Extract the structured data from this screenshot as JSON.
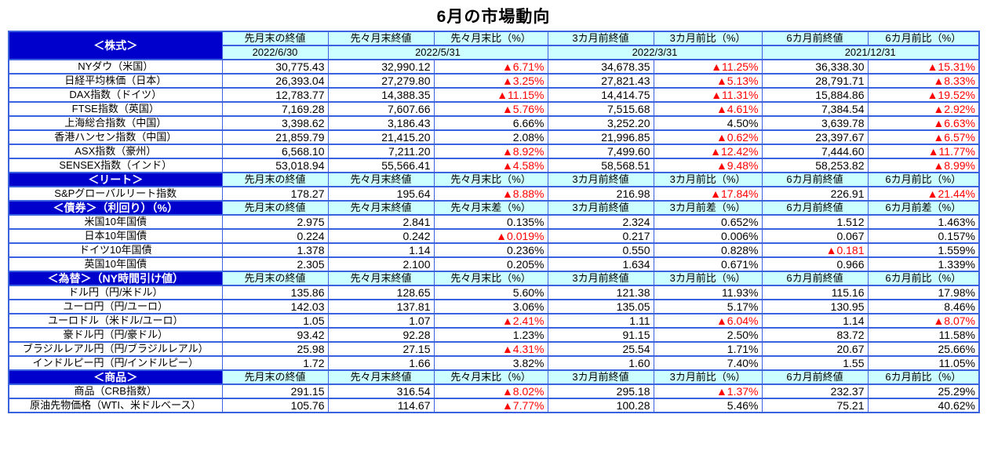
{
  "title": "6月の市場動向",
  "colors": {
    "section_header_bg": "#0000CC",
    "section_header_fg": "#FFFFFF",
    "column_header_bg": "#CCFFFF",
    "border": "#3A62E0",
    "negative_value": "#FF0000",
    "text": "#000000"
  },
  "negative_marker": "▲",
  "sections": [
    {
      "title": "＜株式＞",
      "headers": [
        "先月末の終値",
        "先々月末終値",
        "先々月末比（%）",
        "3カ月前終値",
        "3カ月前比（%）",
        "6カ月前終値",
        "6カ月前比（%）"
      ],
      "dates": [
        "2022/6/30",
        "2022/5/31",
        "2022/3/31",
        "2021/12/31"
      ],
      "rows": [
        {
          "label": "NYダウ（米国）",
          "values": [
            "30,775.43",
            "32,990.12",
            "▲6.71%",
            "34,678.35",
            "▲11.25%",
            "36,338.30",
            "▲15.31%"
          ]
        },
        {
          "label": "日経平均株価（日本）",
          "values": [
            "26,393.04",
            "27,279.80",
            "▲3.25%",
            "27,821.43",
            "▲5.13%",
            "28,791.71",
            "▲8.33%"
          ]
        },
        {
          "label": "DAX指数（ドイツ）",
          "values": [
            "12,783.77",
            "14,388.35",
            "▲11.15%",
            "14,414.75",
            "▲11.31%",
            "15,884.86",
            "▲19.52%"
          ]
        },
        {
          "label": "FTSE指数（英国）",
          "values": [
            "7,169.28",
            "7,607.66",
            "▲5.76%",
            "7,515.68",
            "▲4.61%",
            "7,384.54",
            "▲2.92%"
          ]
        },
        {
          "label": "上海総合指数（中国）",
          "values": [
            "3,398.62",
            "3,186.43",
            "6.66%",
            "3,252.20",
            "4.50%",
            "3,639.78",
            "▲6.63%"
          ]
        },
        {
          "label": "香港ハンセン指数（中国）",
          "values": [
            "21,859.79",
            "21,415.20",
            "2.08%",
            "21,996.85",
            "▲0.62%",
            "23,397.67",
            "▲6.57%"
          ]
        },
        {
          "label": "ASX指数（豪州）",
          "values": [
            "6,568.10",
            "7,211.20",
            "▲8.92%",
            "7,499.60",
            "▲12.42%",
            "7,444.60",
            "▲11.77%"
          ]
        },
        {
          "label": "SENSEX指数（インド）",
          "values": [
            "53,018.94",
            "55,566.41",
            "▲4.58%",
            "58,568.51",
            "▲9.48%",
            "58,253.82",
            "▲8.99%"
          ]
        }
      ]
    },
    {
      "title": "＜リート＞",
      "headers": [
        "先月末の終値",
        "先々月末終値",
        "先々月末比（%）",
        "3カ月前終値",
        "3カ月前比（%）",
        "6カ月前終値",
        "6カ月前比（%）"
      ],
      "rows": [
        {
          "label": "S&Pグローバルリート指数",
          "values": [
            "178.27",
            "195.64",
            "▲8.88%",
            "216.98",
            "▲17.84%",
            "226.91",
            "▲21.44%"
          ]
        }
      ]
    },
    {
      "title": "＜債券＞（利回り）（%）",
      "headers": [
        "先月末の終値",
        "先々月末終値",
        "先々月末差（%）",
        "3カ月前終値",
        "3カ月前差（%）",
        "6カ月前終値",
        "6カ月前差（%）"
      ],
      "rows": [
        {
          "label": "米国10年国債",
          "values": [
            "2.975",
            "2.841",
            "0.135%",
            "2.324",
            "0.652%",
            "1.512",
            "1.463%"
          ]
        },
        {
          "label": "日本10年国債",
          "values": [
            "0.224",
            "0.242",
            "▲0.019%",
            "0.217",
            "0.006%",
            "0.067",
            "0.157%"
          ]
        },
        {
          "label": "ドイツ10年国債",
          "values": [
            "1.378",
            "1.14",
            "0.236%",
            "0.550",
            "0.828%",
            "▲0.181",
            "1.559%"
          ]
        },
        {
          "label": "英国10年国債",
          "values": [
            "2.305",
            "2.100",
            "0.205%",
            "1.634",
            "0.671%",
            "0.966",
            "1.339%"
          ]
        }
      ]
    },
    {
      "title": "＜為替＞（NY時間引け値）",
      "headers": [
        "先月末の終値",
        "先々月末終値",
        "先々月末比（%）",
        "3カ月前終値",
        "3カ月前比（%）",
        "6カ月前終値",
        "6カ月前比（%）"
      ],
      "rows": [
        {
          "label": "ドル円（円/米ドル）",
          "values": [
            "135.86",
            "128.65",
            "5.60%",
            "121.38",
            "11.93%",
            "115.16",
            "17.98%"
          ]
        },
        {
          "label": "ユーロ円（円/ユーロ）",
          "values": [
            "142.03",
            "137.81",
            "3.06%",
            "135.05",
            "5.17%",
            "130.95",
            "8.46%"
          ]
        },
        {
          "label": "ユーロドル（米ドル/ユーロ）",
          "values": [
            "1.05",
            "1.07",
            "▲2.41%",
            "1.11",
            "▲6.04%",
            "1.14",
            "▲8.07%"
          ]
        },
        {
          "label": "豪ドル円（円/豪ドル）",
          "values": [
            "93.42",
            "92.28",
            "1.23%",
            "91.15",
            "2.50%",
            "83.72",
            "11.58%"
          ]
        },
        {
          "label": "ブラジルレアル円（円/ブラジルレアル）",
          "values": [
            "25.98",
            "27.15",
            "▲4.31%",
            "25.54",
            "1.71%",
            "20.67",
            "25.66%"
          ]
        },
        {
          "label": "インドルピー円（円/インドルピー）",
          "values": [
            "1.72",
            "1.66",
            "3.82%",
            "1.60",
            "7.40%",
            "1.55",
            "11.05%"
          ]
        }
      ]
    },
    {
      "title": "＜商品＞",
      "headers": [
        "先月末の終値",
        "先々月末終値",
        "先々月末比（%）",
        "3カ月前終値",
        "3カ月前比（%）",
        "6カ月前終値",
        "6カ月前比（%）"
      ],
      "rows": [
        {
          "label": "商品（CRB指数）",
          "values": [
            "291.15",
            "316.54",
            "▲8.02%",
            "295.18",
            "▲1.37%",
            "232.37",
            "25.29%"
          ]
        },
        {
          "label": "原油先物価格（WTI、米ドルベース）",
          "values": [
            "105.76",
            "114.67",
            "▲7.77%",
            "100.28",
            "5.46%",
            "75.21",
            "40.62%"
          ]
        }
      ]
    }
  ]
}
